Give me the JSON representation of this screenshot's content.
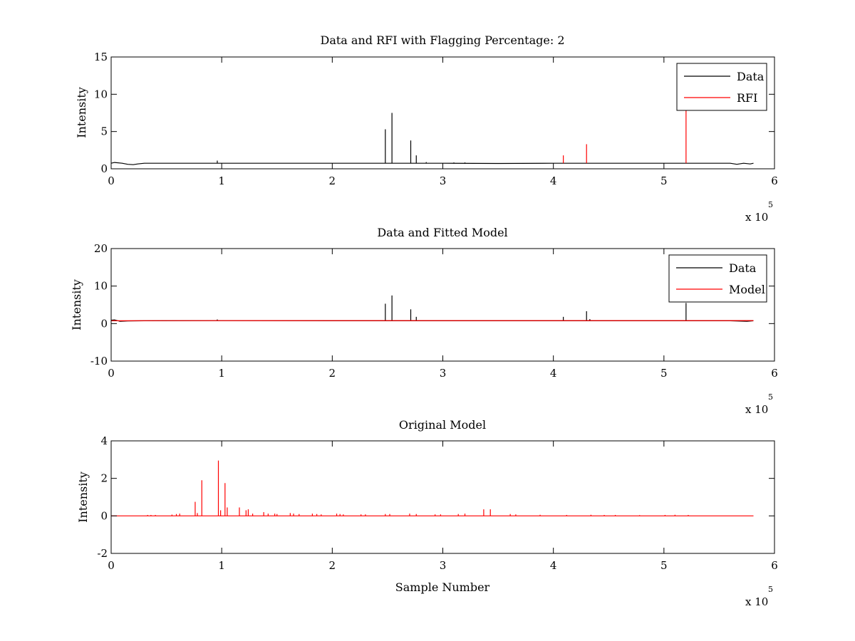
{
  "figure": {
    "background": "#ffffff"
  },
  "chart_data": [
    {
      "type": "line",
      "title": "Data and RFI with Flagging Percentage: 2",
      "xlabel": "",
      "ylabel": "Intensity",
      "xlim": [
        0,
        600000
      ],
      "ylim": [
        0,
        15
      ],
      "xticks": [
        0,
        100000,
        200000,
        300000,
        400000,
        500000,
        600000
      ],
      "xtick_labels": [
        "0",
        "1",
        "2",
        "3",
        "4",
        "5",
        "6"
      ],
      "yticks": [
        0,
        5,
        10,
        15
      ],
      "ytick_labels": [
        "0",
        "5",
        "10",
        "15"
      ],
      "x_multiplier_base": "x 10",
      "x_multiplier_exp": "5",
      "grid": false,
      "legend": {
        "position": "top-right",
        "entries": [
          "Data",
          "RFI"
        ]
      },
      "series": [
        {
          "name": "Data",
          "color": "#000000",
          "baseline": [
            [
              0,
              0.75
            ],
            [
              3000,
              0.85
            ],
            [
              10000,
              0.75
            ],
            [
              15000,
              0.6
            ],
            [
              20000,
              0.55
            ],
            [
              24000,
              0.65
            ],
            [
              30000,
              0.75
            ],
            [
              100000,
              0.75
            ],
            [
              250000,
              0.75
            ],
            [
              300000,
              0.75
            ],
            [
              350000,
              0.72
            ],
            [
              400000,
              0.75
            ],
            [
              450000,
              0.75
            ],
            [
              500000,
              0.75
            ],
            [
              560000,
              0.75
            ],
            [
              566000,
              0.6
            ],
            [
              572000,
              0.75
            ],
            [
              578000,
              0.65
            ],
            [
              581000,
              0.75
            ]
          ],
          "spikes": [
            [
              96000,
              1.1
            ],
            [
              248000,
              5.3
            ],
            [
              254000,
              7.5
            ],
            [
              271000,
              3.8
            ],
            [
              276000,
              1.8
            ],
            [
              285000,
              0.9
            ],
            [
              310000,
              0.85
            ],
            [
              320000,
              0.85
            ]
          ]
        },
        {
          "name": "RFI",
          "color": "#ff0000",
          "baseline": [],
          "spikes": [
            [
              409000,
              1.8
            ],
            [
              430000,
              3.3
            ],
            [
              520000,
              8.2
            ]
          ]
        }
      ]
    },
    {
      "type": "line",
      "title": "Data and Fitted Model",
      "xlabel": "",
      "ylabel": "Intensity",
      "xlim": [
        0,
        600000
      ],
      "ylim": [
        -10,
        20
      ],
      "xticks": [
        0,
        100000,
        200000,
        300000,
        400000,
        500000,
        600000
      ],
      "xtick_labels": [
        "0",
        "1",
        "2",
        "3",
        "4",
        "5",
        "6"
      ],
      "yticks": [
        -10,
        0,
        10,
        20
      ],
      "ytick_labels": [
        "-10",
        "0",
        "10",
        "20"
      ],
      "x_multiplier_base": "x 10",
      "x_multiplier_exp": "5",
      "grid": false,
      "legend": {
        "position": "top-right",
        "entries": [
          "Data",
          "Model"
        ]
      },
      "series": [
        {
          "name": "Data",
          "color": "#000000",
          "baseline": [
            [
              0,
              0.9
            ],
            [
              3000,
              1.0
            ],
            [
              8000,
              0.6
            ],
            [
              15000,
              0.7
            ],
            [
              30000,
              0.75
            ],
            [
              100000,
              0.8
            ],
            [
              200000,
              0.75
            ],
            [
              300000,
              0.75
            ],
            [
              400000,
              0.75
            ],
            [
              500000,
              0.75
            ],
            [
              560000,
              0.75
            ],
            [
              575000,
              0.6
            ],
            [
              581000,
              0.75
            ]
          ],
          "spikes": [
            [
              96000,
              1.1
            ],
            [
              248000,
              5.3
            ],
            [
              254000,
              7.5
            ],
            [
              271000,
              3.8
            ],
            [
              276000,
              1.8
            ],
            [
              409000,
              1.8
            ],
            [
              430000,
              3.3
            ],
            [
              433000,
              1.2
            ],
            [
              520000,
              5.5
            ]
          ]
        },
        {
          "name": "Model",
          "color": "#ff0000",
          "baseline": [
            [
              0,
              0.75
            ],
            [
              50000,
              0.78
            ],
            [
              300000,
              0.8
            ],
            [
              581000,
              0.8
            ]
          ],
          "spikes": []
        }
      ]
    },
    {
      "type": "line",
      "title": "Original Model",
      "xlabel": "Sample Number",
      "ylabel": "Intensity",
      "xlim": [
        0,
        600000
      ],
      "ylim": [
        -2,
        4
      ],
      "xticks": [
        0,
        100000,
        200000,
        300000,
        400000,
        500000,
        600000
      ],
      "xtick_labels": [
        "0",
        "1",
        "2",
        "3",
        "4",
        "5",
        "6"
      ],
      "yticks": [
        -2,
        0,
        2,
        4
      ],
      "ytick_labels": [
        "-2",
        "0",
        "2",
        "4"
      ],
      "x_multiplier_base": "x 10",
      "x_multiplier_exp": "5",
      "grid": false,
      "legend": null,
      "series": [
        {
          "color": "#ff0000",
          "baseline": [
            [
              0,
              0
            ],
            [
              581000,
              0
            ]
          ],
          "spikes": [
            [
              33000,
              0.05
            ],
            [
              36000,
              0.05
            ],
            [
              40000,
              0.05
            ],
            [
              55000,
              0.07
            ],
            [
              59000,
              0.1
            ],
            [
              62000,
              0.12
            ],
            [
              76000,
              0.75
            ],
            [
              78000,
              0.15
            ],
            [
              82000,
              1.9
            ],
            [
              97000,
              2.95
            ],
            [
              99000,
              0.3
            ],
            [
              103000,
              1.75
            ],
            [
              105000,
              0.45
            ],
            [
              116000,
              0.45
            ],
            [
              122000,
              0.3
            ],
            [
              124000,
              0.35
            ],
            [
              128000,
              0.12
            ],
            [
              138000,
              0.2
            ],
            [
              142000,
              0.12
            ],
            [
              148000,
              0.12
            ],
            [
              150000,
              0.1
            ],
            [
              162000,
              0.15
            ],
            [
              165000,
              0.12
            ],
            [
              170000,
              0.1
            ],
            [
              182000,
              0.12
            ],
            [
              186000,
              0.1
            ],
            [
              190000,
              0.08
            ],
            [
              204000,
              0.12
            ],
            [
              207000,
              0.1
            ],
            [
              210000,
              0.08
            ],
            [
              226000,
              0.08
            ],
            [
              230000,
              0.08
            ],
            [
              248000,
              0.1
            ],
            [
              252000,
              0.1
            ],
            [
              270000,
              0.12
            ],
            [
              276000,
              0.1
            ],
            [
              293000,
              0.08
            ],
            [
              298000,
              0.08
            ],
            [
              314000,
              0.1
            ],
            [
              320000,
              0.12
            ],
            [
              337000,
              0.35
            ],
            [
              343000,
              0.35
            ],
            [
              361000,
              0.1
            ],
            [
              366000,
              0.08
            ],
            [
              388000,
              0.06
            ],
            [
              412000,
              0.05
            ],
            [
              434000,
              0.06
            ],
            [
              446000,
              0.05
            ],
            [
              456000,
              0.05
            ],
            [
              478000,
              0.04
            ],
            [
              501000,
              0.05
            ],
            [
              510000,
              0.06
            ],
            [
              522000,
              0.05
            ]
          ]
        }
      ]
    }
  ]
}
